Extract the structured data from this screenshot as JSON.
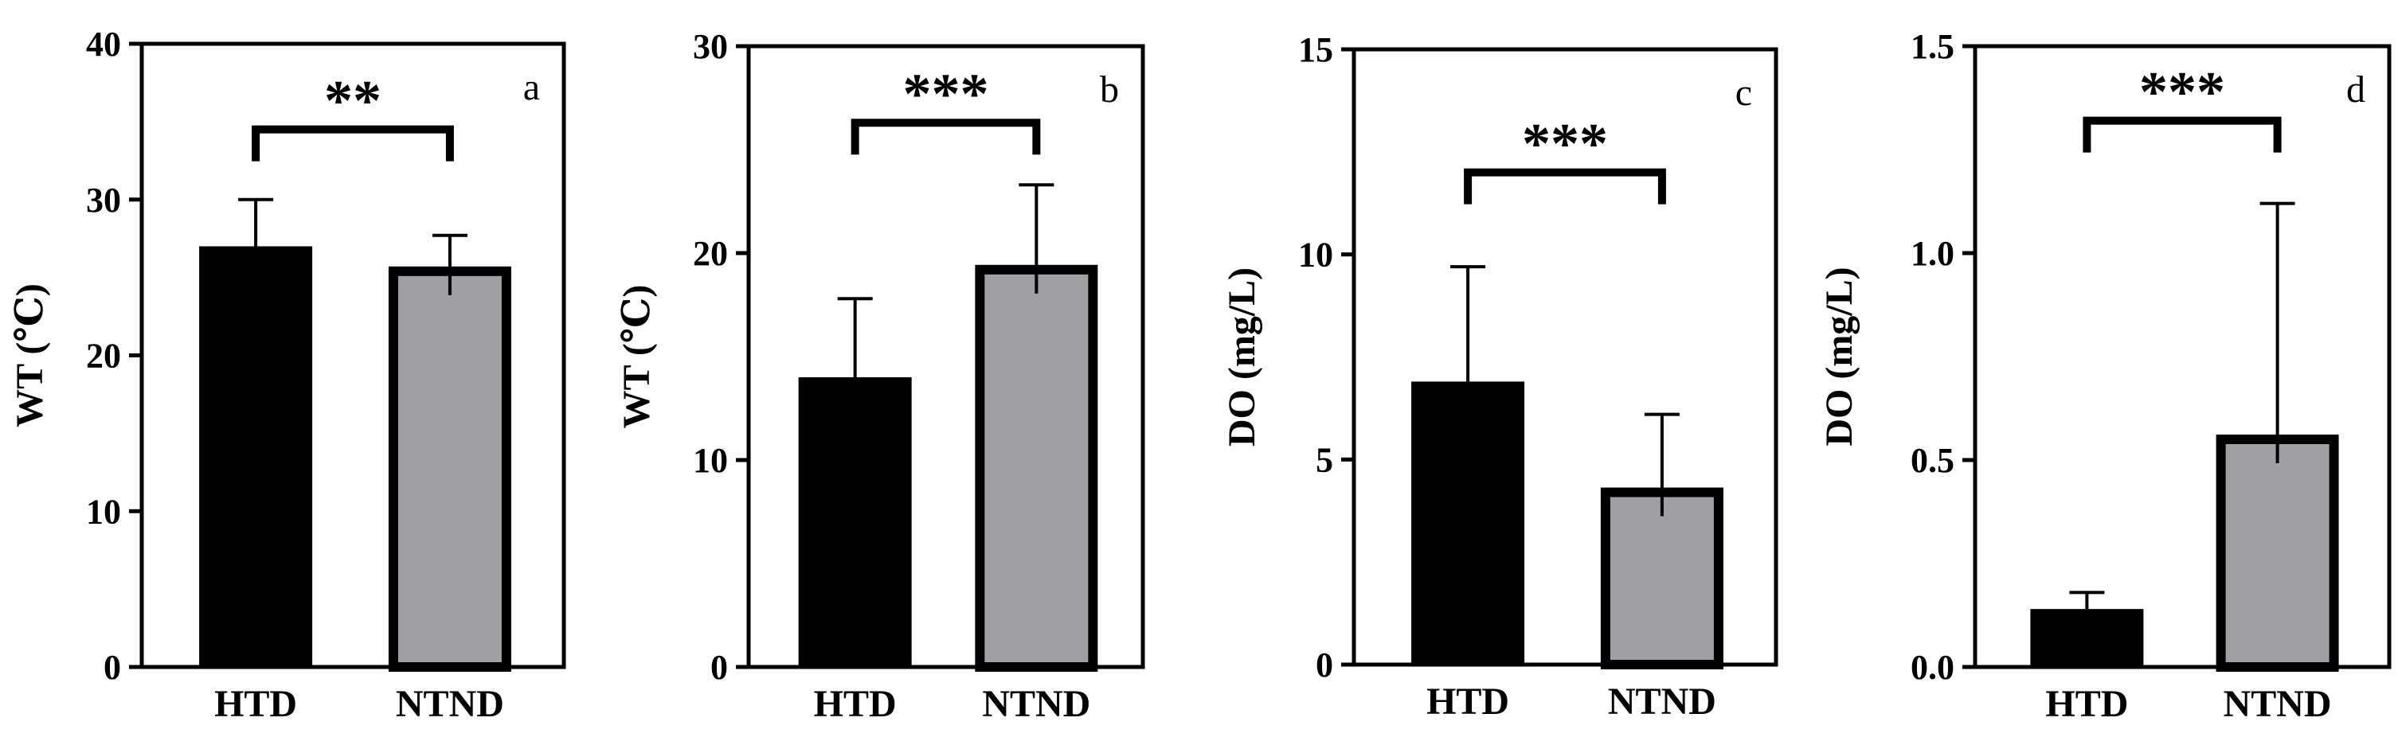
{
  "figure": {
    "colors": {
      "HTD": "#000000",
      "NTND": "#a0a0a4",
      "frame": "#000000"
    },
    "chart_data": [
      {
        "type": "bar",
        "panel": "a",
        "categories": [
          "HTD",
          "NTND"
        ],
        "values": [
          27.0,
          25.4
        ],
        "errors": [
          3.0,
          2.3
        ],
        "ylabel": "WT (℃)",
        "ylim": [
          0,
          40
        ],
        "yticks": [
          0,
          10,
          20,
          30,
          40
        ],
        "ytick_labels": [
          "0",
          "10",
          "20",
          "30",
          "40"
        ],
        "significance": "**",
        "sig_level": 34.5,
        "grid": false
      },
      {
        "type": "bar",
        "panel": "b",
        "categories": [
          "HTD",
          "NTND"
        ],
        "values": [
          14.0,
          19.2
        ],
        "errors": [
          3.8,
          4.1
        ],
        "ylabel": "WT (℃)",
        "ylim": [
          0,
          30
        ],
        "yticks": [
          0,
          10,
          20,
          30
        ],
        "ytick_labels": [
          "0",
          "10",
          "20",
          "30"
        ],
        "significance": "***",
        "sig_level": 26.3,
        "grid": false
      },
      {
        "type": "bar",
        "panel": "c",
        "categories": [
          "HTD",
          "NTND"
        ],
        "values": [
          6.9,
          4.2
        ],
        "errors": [
          2.8,
          1.9
        ],
        "ylabel": "DO (mg/L)",
        "ylim": [
          0,
          15
        ],
        "yticks": [
          0,
          5,
          10,
          15
        ],
        "ytick_labels": [
          "0",
          "5",
          "10",
          "15"
        ],
        "significance": "***",
        "sig_level": 12.0,
        "grid": false
      },
      {
        "type": "bar",
        "panel": "d",
        "categories": [
          "HTD",
          "NTND"
        ],
        "values": [
          0.14,
          0.55
        ],
        "errors": [
          0.04,
          0.57
        ],
        "ylabel": "DO (mg/L)",
        "ylim": [
          0,
          1.5
        ],
        "yticks": [
          0,
          0.5,
          1.0,
          1.5
        ],
        "ytick_labels": [
          "0.0",
          "0.5",
          "1.0",
          "1.5"
        ],
        "significance": "***",
        "sig_level": 1.32,
        "grid": false
      }
    ]
  }
}
